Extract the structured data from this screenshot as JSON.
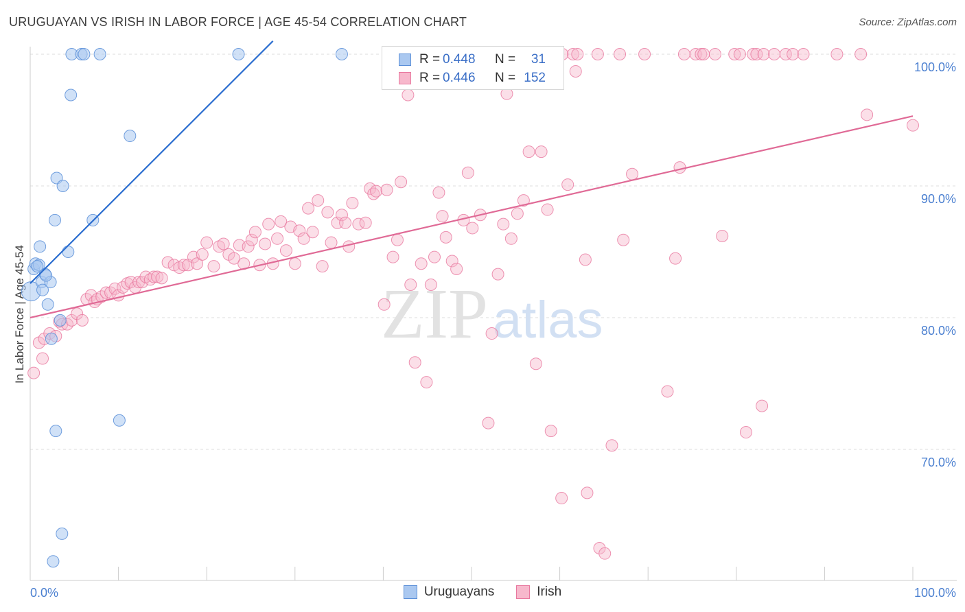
{
  "header": {
    "title": "URUGUAYAN VS IRISH IN LABOR FORCE | AGE 45-54 CORRELATION CHART",
    "source": "Source: ZipAtlas.com"
  },
  "colors": {
    "uruguayan_fill": "#aac8f0",
    "uruguayan_stroke": "#5b8fd8",
    "uruguayan_line": "#2d6fd0",
    "irish_fill": "#f7b8cc",
    "irish_stroke": "#e8789f",
    "irish_line": "#e06a96",
    "tick_text": "#4a7fd0",
    "grid": "#dcdcdc"
  },
  "legend": {
    "rows": [
      {
        "r_label": "R =",
        "r_value": "0.448",
        "n_label": "N =",
        "n_value": "31"
      },
      {
        "r_label": "R =",
        "r_value": "0.446",
        "n_label": "N =",
        "n_value": "152"
      }
    ]
  },
  "bottom_legend": {
    "uruguayans": "Uruguayans",
    "irish": "Irish"
  },
  "watermark": {
    "zip": "ZIP",
    "atlas": "atlas"
  },
  "chart_data": {
    "type": "scatter",
    "title": "URUGUAYAN VS IRISH IN LABOR FORCE | AGE 45-54 CORRELATION CHART",
    "xlabel": "",
    "ylabel": "In Labor Force | Age 45-54",
    "xlim": [
      0,
      100
    ],
    "ylim": [
      59.5,
      101.5
    ],
    "x_tick_labels": [
      "0.0%",
      "100.0%"
    ],
    "y_ticks": [
      70,
      80,
      90,
      100
    ],
    "y_tick_labels": [
      "70.0%",
      "80.0%",
      "90.0%",
      "100.0%"
    ],
    "grid": true,
    "legend_position": "top-center",
    "series": [
      {
        "name": "Uruguayans",
        "R": 0.448,
        "N": 31,
        "trend": {
          "x": [
            0,
            27.5
          ],
          "y": [
            82.6,
            101.0
          ]
        },
        "points": [
          [
            0.1,
            82.0
          ],
          [
            0.4,
            83.7
          ],
          [
            0.6,
            84.1
          ],
          [
            1.1,
            85.4
          ],
          [
            1.3,
            82.7
          ],
          [
            1.4,
            82.1
          ],
          [
            1.7,
            83.3
          ],
          [
            2.0,
            81.0
          ],
          [
            2.3,
            82.7
          ],
          [
            2.4,
            78.4
          ],
          [
            2.8,
            87.4
          ],
          [
            3.0,
            90.6
          ],
          [
            3.4,
            79.8
          ],
          [
            3.7,
            90.0
          ],
          [
            4.3,
            85.0
          ],
          [
            4.6,
            96.9
          ],
          [
            4.7,
            100.0
          ],
          [
            5.8,
            100.0
          ],
          [
            6.1,
            100.0
          ],
          [
            7.1,
            87.4
          ],
          [
            7.9,
            100.0
          ],
          [
            11.3,
            93.8
          ],
          [
            10.1,
            72.2
          ],
          [
            2.9,
            71.4
          ],
          [
            3.6,
            63.6
          ],
          [
            2.6,
            61.5
          ],
          [
            23.6,
            100.0
          ],
          [
            35.3,
            100.0
          ],
          [
            1.0,
            84.0
          ],
          [
            0.8,
            83.9
          ],
          [
            1.8,
            83.2
          ]
        ]
      },
      {
        "name": "Irish",
        "R": 0.446,
        "N": 152,
        "trend": {
          "x": [
            0,
            100
          ],
          "y": [
            80.0,
            95.3
          ]
        },
        "points": [
          [
            0.4,
            75.8
          ],
          [
            1.0,
            78.1
          ],
          [
            1.4,
            76.9
          ],
          [
            1.6,
            78.4
          ],
          [
            2.2,
            78.8
          ],
          [
            2.9,
            78.6
          ],
          [
            3.3,
            79.7
          ],
          [
            3.6,
            79.5
          ],
          [
            4.2,
            79.5
          ],
          [
            4.7,
            79.8
          ],
          [
            5.3,
            80.3
          ],
          [
            5.9,
            79.8
          ],
          [
            6.4,
            81.4
          ],
          [
            6.9,
            81.7
          ],
          [
            7.3,
            81.2
          ],
          [
            7.6,
            81.4
          ],
          [
            8.1,
            81.6
          ],
          [
            8.6,
            81.9
          ],
          [
            9.1,
            81.9
          ],
          [
            9.6,
            82.2
          ],
          [
            10.0,
            81.7
          ],
          [
            10.5,
            82.3
          ],
          [
            11.0,
            82.6
          ],
          [
            11.4,
            82.7
          ],
          [
            11.9,
            82.3
          ],
          [
            12.3,
            82.7
          ],
          [
            12.7,
            82.7
          ],
          [
            13.1,
            83.1
          ],
          [
            13.6,
            82.9
          ],
          [
            14.0,
            83.1
          ],
          [
            14.4,
            83.1
          ],
          [
            14.9,
            83.0
          ],
          [
            15.6,
            84.2
          ],
          [
            16.3,
            84.0
          ],
          [
            16.9,
            83.8
          ],
          [
            17.4,
            84.0
          ],
          [
            17.9,
            84.0
          ],
          [
            18.5,
            84.6
          ],
          [
            18.9,
            84.1
          ],
          [
            19.5,
            84.8
          ],
          [
            20.0,
            85.7
          ],
          [
            20.8,
            83.9
          ],
          [
            21.4,
            85.4
          ],
          [
            21.9,
            85.6
          ],
          [
            22.5,
            84.8
          ],
          [
            23.1,
            84.5
          ],
          [
            23.7,
            85.5
          ],
          [
            24.2,
            84.1
          ],
          [
            24.7,
            85.4
          ],
          [
            25.1,
            85.9
          ],
          [
            25.5,
            86.5
          ],
          [
            26.0,
            84.0
          ],
          [
            26.6,
            85.6
          ],
          [
            27.0,
            87.1
          ],
          [
            27.5,
            84.1
          ],
          [
            28.0,
            86.0
          ],
          [
            28.4,
            87.3
          ],
          [
            29.0,
            85.1
          ],
          [
            29.5,
            86.9
          ],
          [
            30.0,
            84.1
          ],
          [
            30.5,
            86.6
          ],
          [
            31.0,
            86.0
          ],
          [
            31.5,
            88.3
          ],
          [
            32.0,
            86.5
          ],
          [
            32.6,
            88.9
          ],
          [
            33.1,
            83.9
          ],
          [
            33.7,
            88.0
          ],
          [
            34.1,
            85.7
          ],
          [
            34.8,
            87.2
          ],
          [
            35.3,
            87.8
          ],
          [
            35.7,
            87.2
          ],
          [
            36.1,
            85.4
          ],
          [
            36.5,
            88.7
          ],
          [
            37.2,
            87.1
          ],
          [
            38.0,
            87.2
          ],
          [
            38.5,
            89.8
          ],
          [
            38.9,
            89.4
          ],
          [
            39.2,
            89.6
          ],
          [
            40.1,
            81.0
          ],
          [
            40.4,
            89.7
          ],
          [
            41.1,
            84.6
          ],
          [
            41.6,
            85.9
          ],
          [
            42.0,
            90.3
          ],
          [
            42.8,
            96.9
          ],
          [
            43.1,
            82.5
          ],
          [
            43.6,
            76.6
          ],
          [
            44.3,
            84.1
          ],
          [
            44.9,
            75.1
          ],
          [
            45.4,
            82.5
          ],
          [
            45.8,
            84.6
          ],
          [
            46.3,
            89.5
          ],
          [
            46.7,
            87.7
          ],
          [
            47.1,
            86.1
          ],
          [
            47.8,
            84.3
          ],
          [
            48.3,
            83.7
          ],
          [
            49.1,
            87.4
          ],
          [
            49.6,
            91.0
          ],
          [
            50.1,
            86.8
          ],
          [
            51.0,
            87.8
          ],
          [
            51.9,
            72.0
          ],
          [
            52.3,
            78.8
          ],
          [
            53.0,
            83.3
          ],
          [
            53.6,
            87.1
          ],
          [
            54.0,
            97.0
          ],
          [
            54.5,
            86.0
          ],
          [
            55.2,
            87.9
          ],
          [
            55.9,
            88.9
          ],
          [
            56.5,
            92.6
          ],
          [
            57.3,
            76.5
          ],
          [
            57.9,
            92.6
          ],
          [
            58.6,
            88.2
          ],
          [
            59.0,
            71.4
          ],
          [
            60.2,
            66.3
          ],
          [
            60.9,
            90.1
          ],
          [
            61.8,
            98.7
          ],
          [
            62.9,
            84.4
          ],
          [
            63.1,
            66.7
          ],
          [
            64.5,
            62.5
          ],
          [
            65.1,
            62.1
          ],
          [
            65.9,
            70.3
          ],
          [
            67.2,
            85.9
          ],
          [
            68.2,
            90.9
          ],
          [
            69.6,
            100.0
          ],
          [
            72.2,
            74.4
          ],
          [
            73.1,
            84.5
          ],
          [
            73.6,
            91.4
          ],
          [
            74.1,
            100.0
          ],
          [
            75.4,
            100.0
          ],
          [
            76.0,
            100.0
          ],
          [
            76.3,
            100.0
          ],
          [
            77.6,
            100.0
          ],
          [
            78.4,
            86.2
          ],
          [
            79.8,
            100.0
          ],
          [
            80.4,
            100.0
          ],
          [
            81.1,
            71.3
          ],
          [
            81.9,
            100.0
          ],
          [
            82.3,
            100.0
          ],
          [
            83.1,
            100.0
          ],
          [
            82.9,
            73.3
          ],
          [
            84.3,
            100.0
          ],
          [
            85.6,
            100.0
          ],
          [
            86.4,
            100.0
          ],
          [
            87.6,
            100.0
          ],
          [
            91.4,
            100.0
          ],
          [
            94.1,
            100.0
          ],
          [
            94.8,
            95.4
          ],
          [
            100.0,
            94.6
          ],
          [
            60.3,
            100.0
          ],
          [
            61.5,
            100.0
          ],
          [
            62.0,
            100.0
          ],
          [
            64.3,
            100.0
          ],
          [
            66.8,
            100.0
          ]
        ]
      }
    ]
  }
}
